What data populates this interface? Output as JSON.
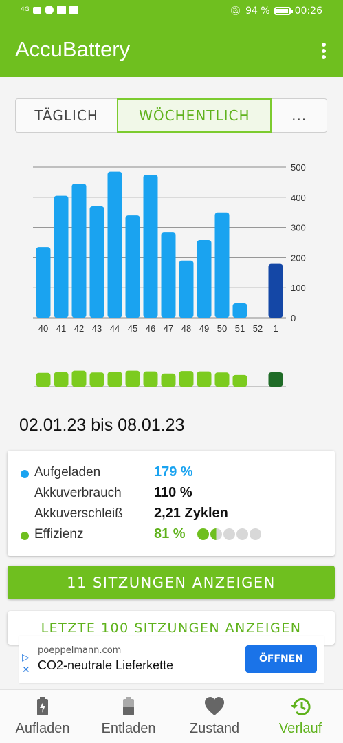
{
  "status_bar": {
    "signal": "4G",
    "battery_percent": "94 %",
    "battery_level": 0.94,
    "time": "00:26"
  },
  "app_bar": {
    "title": "AccuBattery",
    "menu_icon": "more-vert-icon"
  },
  "period_tabs": [
    {
      "label": "TÄGLICH",
      "selected": false
    },
    {
      "label": "WÖCHENTLICH",
      "selected": true
    },
    {
      "label": "...",
      "selected": false
    }
  ],
  "chart_data": {
    "type": "bar",
    "categories": [
      "40",
      "41",
      "42",
      "43",
      "44",
      "45",
      "46",
      "47",
      "48",
      "49",
      "50",
      "51",
      "52",
      "1"
    ],
    "values": [
      235,
      405,
      445,
      370,
      485,
      340,
      475,
      285,
      190,
      258,
      350,
      48,
      0,
      179
    ],
    "highlighted_category": "1",
    "ylim": [
      0,
      500
    ],
    "yticks": [
      "500",
      "400",
      "300",
      "200",
      "100",
      "0"
    ],
    "ytick_values": [
      500,
      400,
      300,
      200,
      100,
      0
    ],
    "grid": true,
    "colors": {
      "bar": "#1aa3f0",
      "bar_current": "#1447a6",
      "efficiency": "#7ccb1f",
      "efficiency_current": "#1f6b27"
    },
    "efficiency_series": {
      "name": "Effizienz",
      "values": [
        0.78,
        0.82,
        0.9,
        0.8,
        0.84,
        0.9,
        0.86,
        0.74,
        0.88,
        0.86,
        0.8,
        0.66,
        0,
        0.81
      ]
    }
  },
  "date_range": "02.01.23 bis 08.01.23",
  "stats": {
    "charged": {
      "label": "Aufgeladen",
      "value": "179 %",
      "color": "#1aa3f0"
    },
    "usage": {
      "label": "Akkuverbrauch",
      "value": "110 %"
    },
    "wear": {
      "label": "Akkuverschleiß",
      "value": "2,21 Zyklen"
    },
    "efficiency": {
      "label": "Effizienz",
      "value": "81 %",
      "color": "#6fbf1f",
      "rating_out_of_5": 1.5
    }
  },
  "buttons": {
    "sessions": "11 SITZUNGEN ANZEIGEN",
    "last_sessions": "LETZTE 100 SITZUNGEN ANZEIGEN"
  },
  "ad": {
    "domain": "poeppelmann.com",
    "title": "CO2-neutrale Lieferkette",
    "cta": "ÖFFNEN"
  },
  "bottom_nav": [
    {
      "label": "Aufladen",
      "icon": "battery-charging-icon",
      "active": false
    },
    {
      "label": "Entladen",
      "icon": "battery-discharging-icon",
      "active": false
    },
    {
      "label": "Zustand",
      "icon": "heart-icon",
      "active": false
    },
    {
      "label": "Verlauf",
      "icon": "history-icon",
      "active": true
    }
  ],
  "theme": {
    "primary": "#6fbf1f",
    "accent_text": "#5fb21c"
  }
}
